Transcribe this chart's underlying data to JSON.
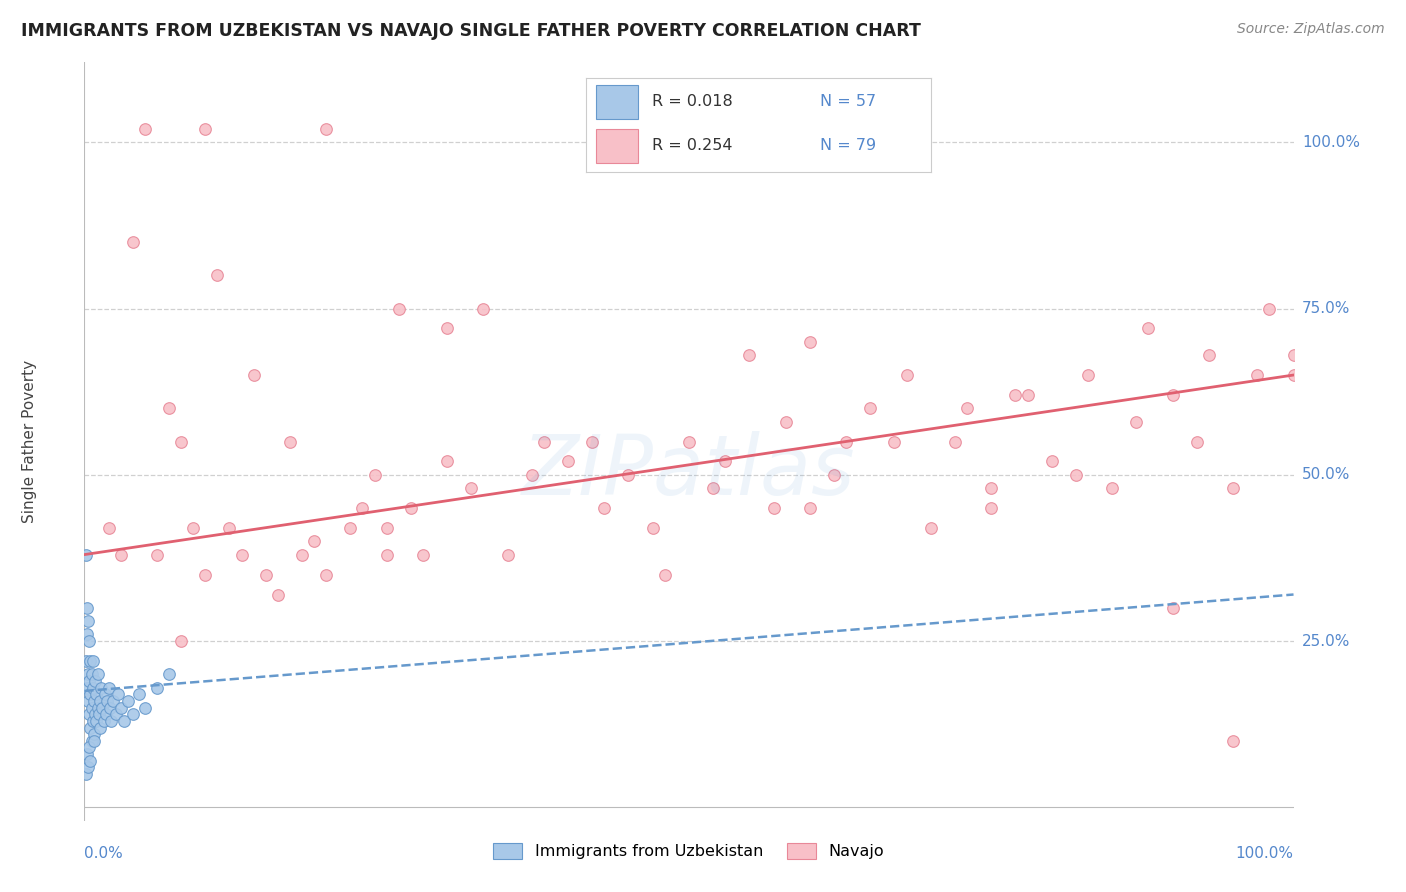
{
  "title": "IMMIGRANTS FROM UZBEKISTAN VS NAVAJO SINGLE FATHER POVERTY CORRELATION CHART",
  "source_text": "Source: ZipAtlas.com",
  "ylabel": "Single Father Poverty",
  "watermark": "ZIPatlas",
  "xlim": [
    0.0,
    1.0
  ],
  "ylim": [
    -0.02,
    1.12
  ],
  "y_tick_values": [
    0.25,
    0.5,
    0.75,
    1.0
  ],
  "y_tick_labels": [
    "25.0%",
    "50.0%",
    "75.0%",
    "100.0%"
  ],
  "legend_r1": "R = 0.018",
  "legend_n1": "N = 57",
  "legend_r2": "R = 0.254",
  "legend_n2": "N = 79",
  "blue_marker_color": "#a8c8e8",
  "blue_edge_color": "#6699cc",
  "pink_marker_color": "#f8c0c8",
  "pink_edge_color": "#e88898",
  "trend_blue_color": "#6699cc",
  "trend_pink_color": "#e06070",
  "grid_color": "#d0d0d0",
  "title_color": "#222222",
  "tick_label_color": "#5588cc",
  "legend_text_dark": "#333333",
  "blue_x": [
    0.001,
    0.001,
    0.002,
    0.002,
    0.002,
    0.003,
    0.003,
    0.003,
    0.004,
    0.004,
    0.004,
    0.005,
    0.005,
    0.005,
    0.006,
    0.006,
    0.006,
    0.007,
    0.007,
    0.007,
    0.008,
    0.008,
    0.009,
    0.009,
    0.01,
    0.01,
    0.011,
    0.011,
    0.012,
    0.013,
    0.013,
    0.014,
    0.015,
    0.016,
    0.017,
    0.018,
    0.019,
    0.02,
    0.021,
    0.022,
    0.024,
    0.026,
    0.028,
    0.03,
    0.033,
    0.036,
    0.04,
    0.045,
    0.05,
    0.06,
    0.07,
    0.001,
    0.002,
    0.003,
    0.004,
    0.005,
    0.008
  ],
  "blue_y": [
    0.38,
    0.22,
    0.3,
    0.18,
    0.26,
    0.28,
    0.2,
    0.16,
    0.25,
    0.19,
    0.14,
    0.22,
    0.17,
    0.12,
    0.2,
    0.15,
    0.1,
    0.18,
    0.13,
    0.22,
    0.16,
    0.11,
    0.14,
    0.19,
    0.13,
    0.17,
    0.15,
    0.2,
    0.14,
    0.16,
    0.12,
    0.18,
    0.15,
    0.13,
    0.17,
    0.14,
    0.16,
    0.18,
    0.15,
    0.13,
    0.16,
    0.14,
    0.17,
    0.15,
    0.13,
    0.16,
    0.14,
    0.17,
    0.15,
    0.18,
    0.2,
    0.05,
    0.08,
    0.06,
    0.09,
    0.07,
    0.1
  ],
  "pink_x": [
    0.02,
    0.04,
    0.06,
    0.07,
    0.09,
    0.1,
    0.11,
    0.13,
    0.14,
    0.16,
    0.17,
    0.18,
    0.2,
    0.22,
    0.24,
    0.25,
    0.26,
    0.27,
    0.3,
    0.32,
    0.35,
    0.38,
    0.4,
    0.43,
    0.45,
    0.48,
    0.5,
    0.52,
    0.55,
    0.57,
    0.6,
    0.62,
    0.65,
    0.67,
    0.7,
    0.72,
    0.75,
    0.77,
    0.8,
    0.82,
    0.85,
    0.87,
    0.9,
    0.92,
    0.95,
    0.97,
    1.0,
    0.03,
    0.08,
    0.12,
    0.15,
    0.19,
    0.23,
    0.28,
    0.33,
    0.37,
    0.42,
    0.47,
    0.53,
    0.58,
    0.63,
    0.68,
    0.73,
    0.78,
    0.83,
    0.88,
    0.93,
    0.98,
    0.05,
    0.1,
    0.2,
    0.3,
    0.6,
    0.75,
    0.9,
    0.95,
    1.0,
    0.08,
    0.25
  ],
  "pink_y": [
    0.42,
    0.85,
    0.38,
    0.6,
    0.42,
    0.35,
    0.8,
    0.38,
    0.65,
    0.32,
    0.55,
    0.38,
    0.35,
    0.42,
    0.5,
    0.38,
    0.75,
    0.45,
    0.52,
    0.48,
    0.38,
    0.55,
    0.52,
    0.45,
    0.5,
    0.35,
    0.55,
    0.48,
    0.68,
    0.45,
    0.45,
    0.5,
    0.6,
    0.55,
    0.42,
    0.55,
    0.48,
    0.62,
    0.52,
    0.5,
    0.48,
    0.58,
    0.62,
    0.55,
    0.48,
    0.65,
    0.68,
    0.38,
    0.25,
    0.42,
    0.35,
    0.4,
    0.45,
    0.38,
    0.75,
    0.5,
    0.55,
    0.42,
    0.52,
    0.58,
    0.55,
    0.65,
    0.6,
    0.62,
    0.65,
    0.72,
    0.68,
    0.75,
    1.02,
    1.02,
    1.02,
    0.72,
    0.7,
    0.45,
    0.3,
    0.1,
    0.65,
    0.55,
    0.42
  ],
  "blue_trend_x": [
    0.0,
    1.0
  ],
  "blue_trend_y": [
    0.175,
    0.32
  ],
  "pink_trend_x": [
    0.0,
    1.0
  ],
  "pink_trend_y": [
    0.38,
    0.65
  ]
}
